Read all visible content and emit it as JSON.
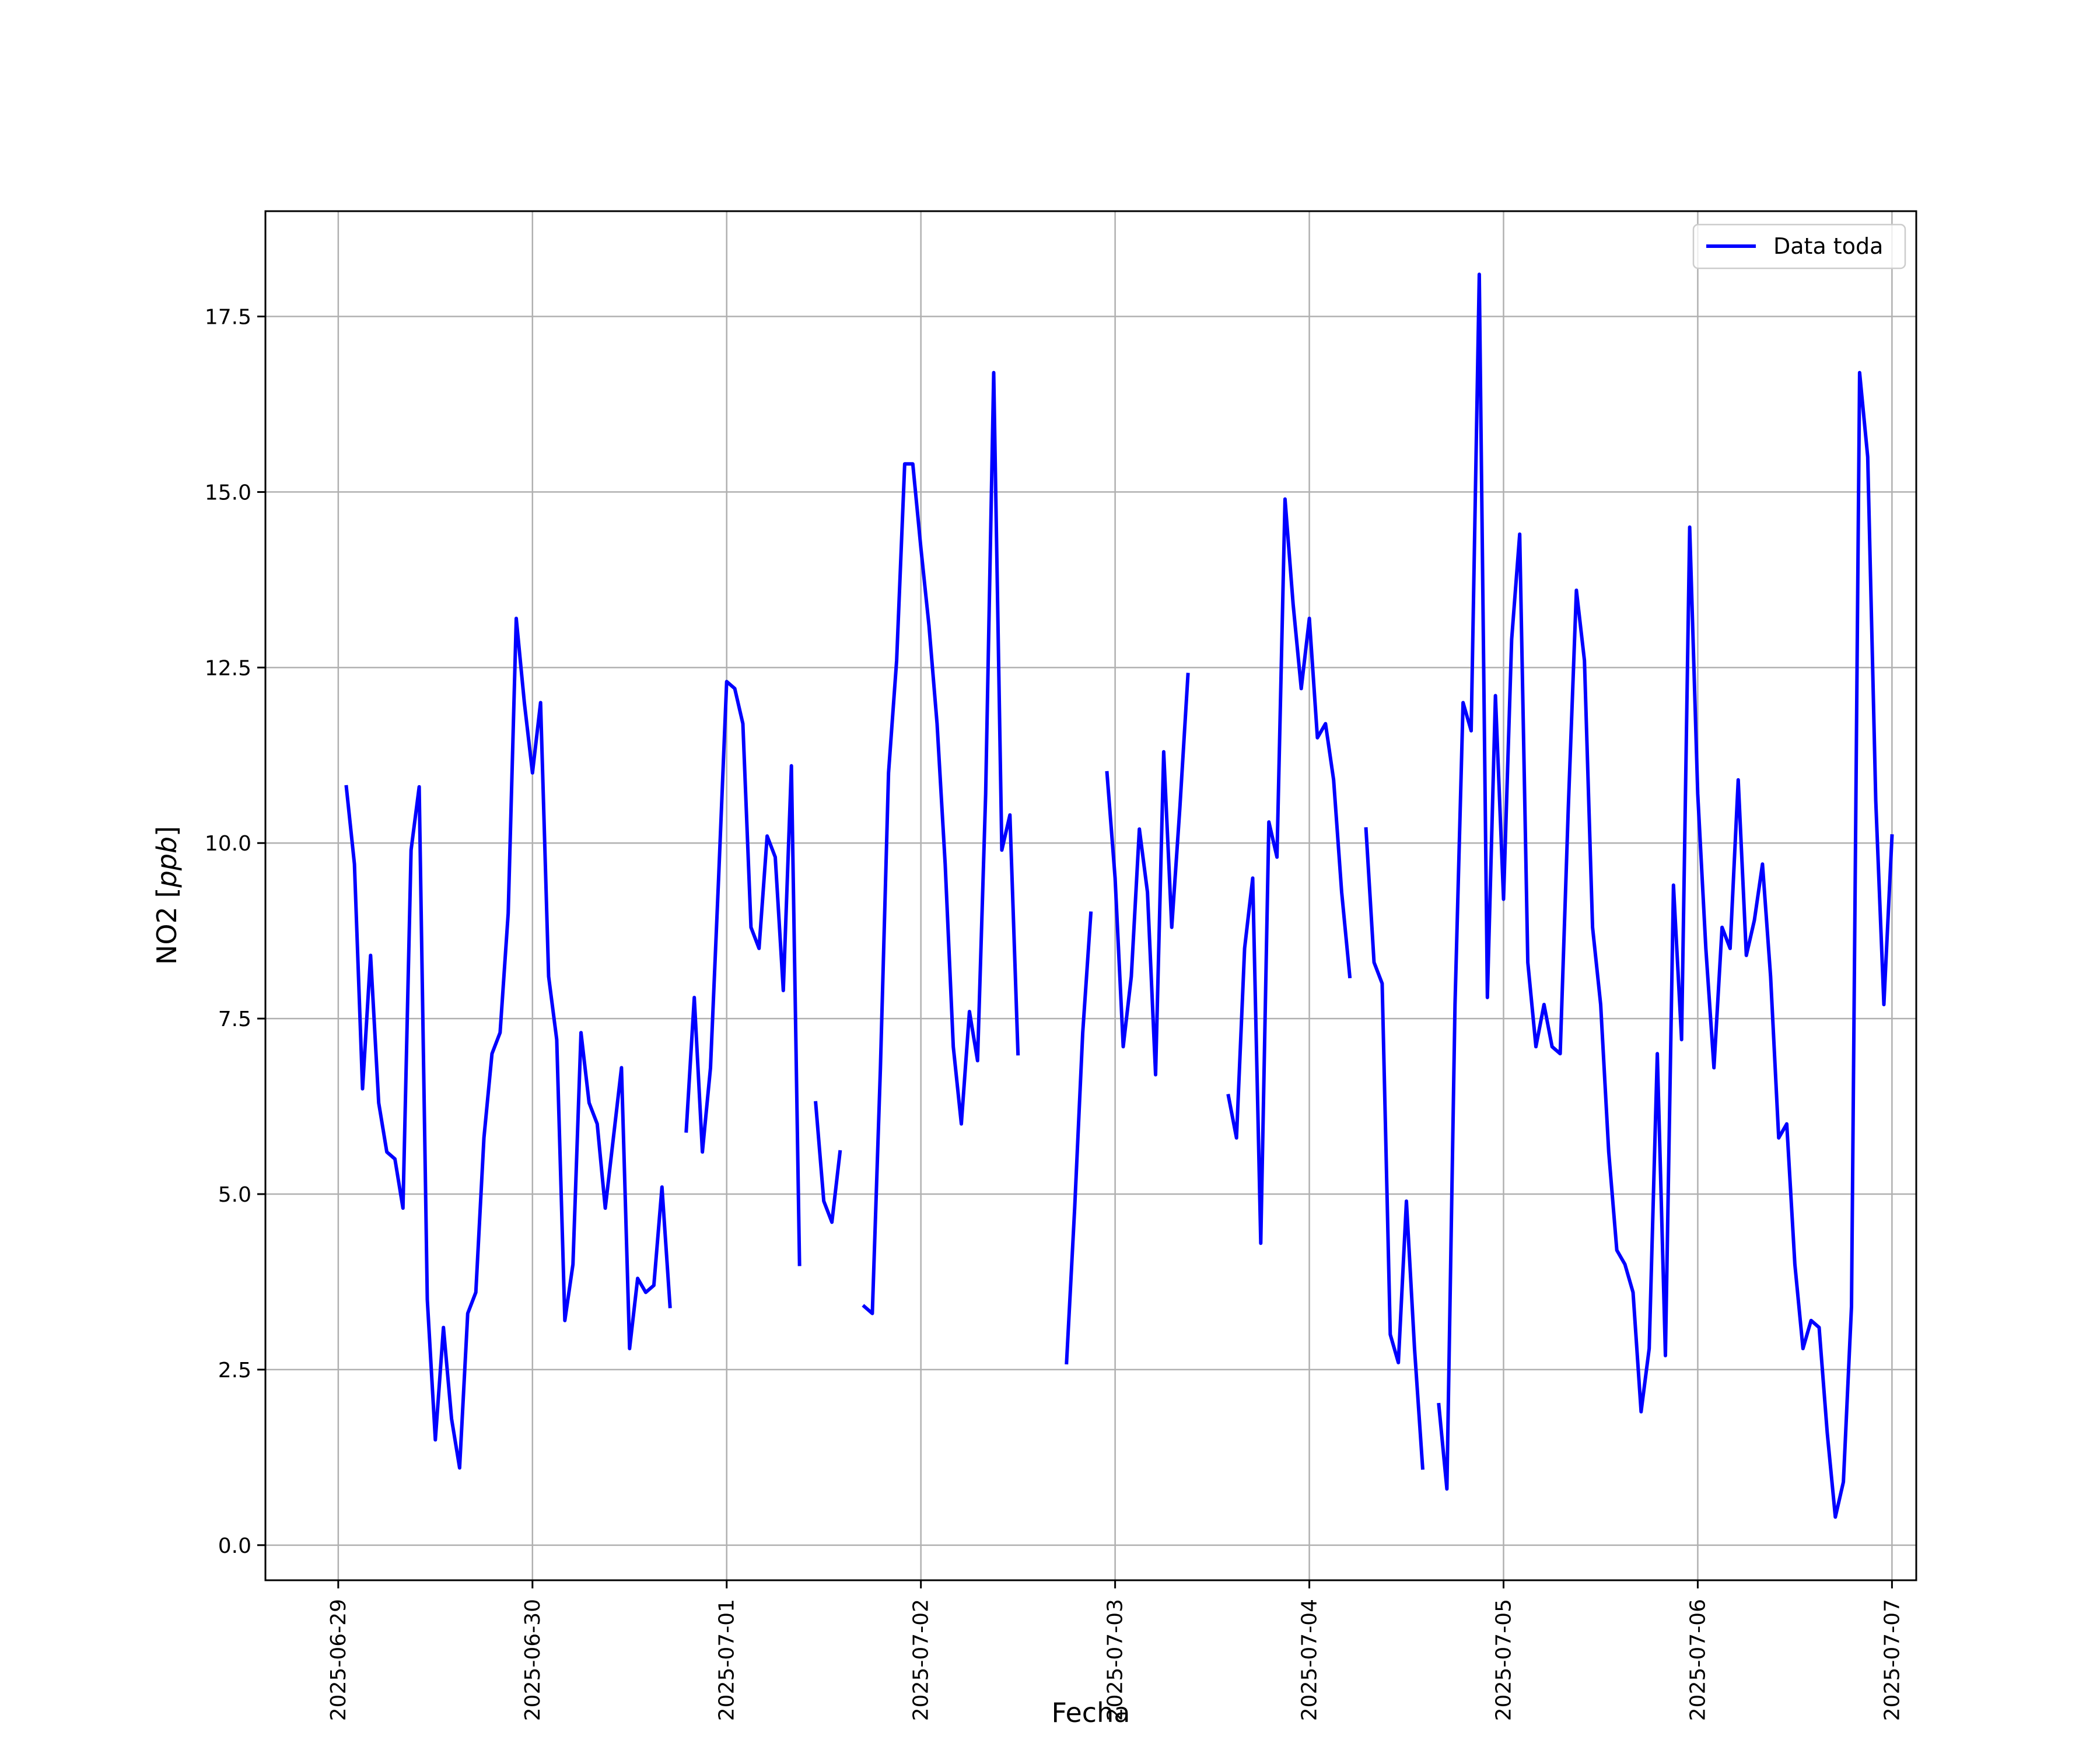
{
  "chart_data": {
    "type": "line",
    "xlabel": "Fecha",
    "ylabel": "NO2 [ppb]",
    "ylabel_parts": {
      "name": "NO2",
      "unit": "ppb"
    },
    "xlim": [
      "2025-06-28 15:00",
      "2025-07-07 03:00"
    ],
    "ylim": [
      -0.5,
      19.0
    ],
    "x_ticks": [
      "2025-06-29",
      "2025-06-30",
      "2025-07-01",
      "2025-07-02",
      "2025-07-03",
      "2025-07-04",
      "2025-07-05",
      "2025-07-06",
      "2025-07-07"
    ],
    "y_ticks": [
      0.0,
      2.5,
      5.0,
      7.5,
      10.0,
      12.5,
      15.0,
      17.5
    ],
    "y_tick_labels": [
      "0.0",
      "2.5",
      "5.0",
      "7.5",
      "10.0",
      "12.5",
      "15.0",
      "17.5"
    ],
    "grid": true,
    "legend_position": "top-right",
    "series": [
      {
        "name": "Data toda",
        "color": "#0000ff",
        "segments": [
          {
            "points": [
              [
                "2025-06-29 01:00",
                10.8
              ],
              [
                "2025-06-29 02:00",
                9.7
              ],
              [
                "2025-06-29 03:00",
                6.5
              ],
              [
                "2025-06-29 04:00",
                8.4
              ],
              [
                "2025-06-29 05:00",
                6.3
              ],
              [
                "2025-06-29 06:00",
                5.6
              ],
              [
                "2025-06-29 07:00",
                5.5
              ],
              [
                "2025-06-29 08:00",
                4.8
              ],
              [
                "2025-06-29 09:00",
                9.9
              ],
              [
                "2025-06-29 10:00",
                10.8
              ],
              [
                "2025-06-29 11:00",
                3.5
              ],
              [
                "2025-06-29 12:00",
                1.5
              ],
              [
                "2025-06-29 13:00",
                3.1
              ],
              [
                "2025-06-29 14:00",
                1.8
              ],
              [
                "2025-06-29 15:00",
                1.1
              ],
              [
                "2025-06-29 16:00",
                3.3
              ],
              [
                "2025-06-29 17:00",
                3.6
              ],
              [
                "2025-06-29 18:00",
                5.8
              ],
              [
                "2025-06-29 19:00",
                7.0
              ],
              [
                "2025-06-29 20:00",
                7.3
              ],
              [
                "2025-06-29 21:00",
                9.0
              ],
              [
                "2025-06-29 22:00",
                13.2
              ],
              [
                "2025-06-29 23:00",
                12.0
              ],
              [
                "2025-06-30 00:00",
                11.0
              ],
              [
                "2025-06-30 01:00",
                12.0
              ],
              [
                "2025-06-30 02:00",
                8.1
              ],
              [
                "2025-06-30 03:00",
                7.2
              ],
              [
                "2025-06-30 04:00",
                3.2
              ],
              [
                "2025-06-30 05:00",
                4.0
              ],
              [
                "2025-06-30 06:00",
                7.3
              ],
              [
                "2025-06-30 07:00",
                6.3
              ],
              [
                "2025-06-30 08:00",
                6.0
              ],
              [
                "2025-06-30 09:00",
                4.8
              ],
              [
                "2025-06-30 10:00",
                5.8
              ],
              [
                "2025-06-30 11:00",
                6.8
              ],
              [
                "2025-06-30 12:00",
                2.8
              ],
              [
                "2025-06-30 13:00",
                3.8
              ],
              [
                "2025-06-30 14:00",
                3.6
              ],
              [
                "2025-06-30 15:00",
                3.7
              ],
              [
                "2025-06-30 16:00",
                5.1
              ],
              [
                "2025-06-30 17:00",
                3.4
              ]
            ]
          },
          {
            "points": [
              [
                "2025-06-30 19:00",
                5.9
              ],
              [
                "2025-06-30 20:00",
                7.8
              ],
              [
                "2025-06-30 21:00",
                5.6
              ],
              [
                "2025-06-30 22:00",
                6.8
              ],
              [
                "2025-06-30 23:00",
                9.5
              ],
              [
                "2025-07-01 00:00",
                12.3
              ],
              [
                "2025-07-01 01:00",
                12.2
              ],
              [
                "2025-07-01 02:00",
                11.7
              ],
              [
                "2025-07-01 03:00",
                8.8
              ],
              [
                "2025-07-01 04:00",
                8.5
              ],
              [
                "2025-07-01 05:00",
                10.1
              ],
              [
                "2025-07-01 06:00",
                9.8
              ],
              [
                "2025-07-01 07:00",
                7.9
              ],
              [
                "2025-07-01 08:00",
                11.1
              ],
              [
                "2025-07-01 09:00",
                4.0
              ]
            ]
          },
          {
            "points": [
              [
                "2025-07-01 11:00",
                6.3
              ],
              [
                "2025-07-01 12:00",
                4.9
              ],
              [
                "2025-07-01 13:00",
                4.6
              ],
              [
                "2025-07-01 14:00",
                5.6
              ]
            ]
          },
          {
            "points": [
              [
                "2025-07-01 17:00",
                3.4
              ],
              [
                "2025-07-01 18:00",
                3.3
              ],
              [
                "2025-07-01 19:00",
                6.8
              ],
              [
                "2025-07-01 20:00",
                11.0
              ],
              [
                "2025-07-01 21:00",
                12.6
              ],
              [
                "2025-07-01 22:00",
                15.4
              ],
              [
                "2025-07-01 23:00",
                15.4
              ],
              [
                "2025-07-02 00:00",
                14.2
              ],
              [
                "2025-07-02 01:00",
                13.1
              ],
              [
                "2025-07-02 02:00",
                11.7
              ],
              [
                "2025-07-02 03:00",
                9.7
              ],
              [
                "2025-07-02 04:00",
                7.1
              ],
              [
                "2025-07-02 05:00",
                6.0
              ],
              [
                "2025-07-02 06:00",
                7.6
              ],
              [
                "2025-07-02 07:00",
                6.9
              ],
              [
                "2025-07-02 08:00",
                10.7
              ],
              [
                "2025-07-02 09:00",
                16.7
              ],
              [
                "2025-07-02 10:00",
                9.9
              ],
              [
                "2025-07-02 11:00",
                10.4
              ],
              [
                "2025-07-02 12:00",
                7.0
              ]
            ]
          },
          {
            "points": [
              [
                "2025-07-02 18:00",
                2.6
              ],
              [
                "2025-07-02 19:00",
                4.8
              ],
              [
                "2025-07-02 20:00",
                7.3
              ],
              [
                "2025-07-02 21:00",
                9.0
              ]
            ]
          },
          {
            "points": [
              [
                "2025-07-02 23:00",
                11.0
              ],
              [
                "2025-07-03 00:00",
                9.5
              ],
              [
                "2025-07-03 01:00",
                7.1
              ],
              [
                "2025-07-03 02:00",
                8.1
              ],
              [
                "2025-07-03 03:00",
                10.2
              ],
              [
                "2025-07-03 04:00",
                9.3
              ],
              [
                "2025-07-03 05:00",
                6.7
              ],
              [
                "2025-07-03 06:00",
                11.3
              ],
              [
                "2025-07-03 07:00",
                8.8
              ],
              [
                "2025-07-03 08:00",
                10.5
              ],
              [
                "2025-07-03 09:00",
                12.4
              ]
            ]
          },
          {
            "points": [
              [
                "2025-07-03 14:00",
                6.4
              ],
              [
                "2025-07-03 15:00",
                5.8
              ],
              [
                "2025-07-03 16:00",
                8.5
              ],
              [
                "2025-07-03 17:00",
                9.5
              ],
              [
                "2025-07-03 18:00",
                4.3
              ],
              [
                "2025-07-03 19:00",
                10.3
              ],
              [
                "2025-07-03 20:00",
                9.8
              ],
              [
                "2025-07-03 21:00",
                14.9
              ],
              [
                "2025-07-03 22:00",
                13.4
              ],
              [
                "2025-07-03 23:00",
                12.2
              ],
              [
                "2025-07-04 00:00",
                13.2
              ],
              [
                "2025-07-04 01:00",
                11.5
              ],
              [
                "2025-07-04 02:00",
                11.7
              ],
              [
                "2025-07-04 03:00",
                10.9
              ],
              [
                "2025-07-04 04:00",
                9.3
              ],
              [
                "2025-07-04 05:00",
                8.1
              ]
            ]
          },
          {
            "points": [
              [
                "2025-07-04 07:00",
                10.2
              ],
              [
                "2025-07-04 08:00",
                8.3
              ],
              [
                "2025-07-04 09:00",
                8.0
              ],
              [
                "2025-07-04 10:00",
                3.0
              ],
              [
                "2025-07-04 11:00",
                2.6
              ],
              [
                "2025-07-04 12:00",
                4.9
              ],
              [
                "2025-07-04 13:00",
                2.8
              ],
              [
                "2025-07-04 14:00",
                1.1
              ]
            ]
          },
          {
            "points": [
              [
                "2025-07-04 16:00",
                2.0
              ],
              [
                "2025-07-04 17:00",
                0.8
              ],
              [
                "2025-07-04 18:00",
                7.7
              ],
              [
                "2025-07-04 19:00",
                12.0
              ],
              [
                "2025-07-04 20:00",
                11.6
              ],
              [
                "2025-07-04 21:00",
                18.1
              ],
              [
                "2025-07-04 22:00",
                7.8
              ],
              [
                "2025-07-04 23:00",
                12.1
              ],
              [
                "2025-07-05 00:00",
                9.2
              ],
              [
                "2025-07-05 01:00",
                12.9
              ],
              [
                "2025-07-05 02:00",
                14.4
              ],
              [
                "2025-07-05 03:00",
                8.3
              ],
              [
                "2025-07-05 04:00",
                7.1
              ],
              [
                "2025-07-05 05:00",
                7.7
              ],
              [
                "2025-07-05 06:00",
                7.1
              ],
              [
                "2025-07-05 07:00",
                7.0
              ],
              [
                "2025-07-05 08:00",
                10.5
              ],
              [
                "2025-07-05 09:00",
                13.6
              ],
              [
                "2025-07-05 10:00",
                12.6
              ],
              [
                "2025-07-05 11:00",
                8.8
              ],
              [
                "2025-07-05 12:00",
                7.7
              ],
              [
                "2025-07-05 13:00",
                5.6
              ],
              [
                "2025-07-05 14:00",
                4.2
              ],
              [
                "2025-07-05 15:00",
                4.0
              ],
              [
                "2025-07-05 16:00",
                3.6
              ],
              [
                "2025-07-05 17:00",
                1.9
              ],
              [
                "2025-07-05 18:00",
                2.8
              ],
              [
                "2025-07-05 19:00",
                7.0
              ],
              [
                "2025-07-05 20:00",
                2.7
              ],
              [
                "2025-07-05 21:00",
                9.4
              ],
              [
                "2025-07-05 22:00",
                7.2
              ],
              [
                "2025-07-05 23:00",
                14.5
              ],
              [
                "2025-07-06 00:00",
                10.7
              ],
              [
                "2025-07-06 01:00",
                8.5
              ],
              [
                "2025-07-06 02:00",
                6.8
              ],
              [
                "2025-07-06 03:00",
                8.8
              ],
              [
                "2025-07-06 04:00",
                8.5
              ],
              [
                "2025-07-06 05:00",
                10.9
              ],
              [
                "2025-07-06 06:00",
                8.4
              ],
              [
                "2025-07-06 07:00",
                8.9
              ],
              [
                "2025-07-06 08:00",
                9.7
              ],
              [
                "2025-07-06 09:00",
                8.1
              ],
              [
                "2025-07-06 10:00",
                5.8
              ],
              [
                "2025-07-06 11:00",
                6.0
              ],
              [
                "2025-07-06 12:00",
                4.0
              ],
              [
                "2025-07-06 13:00",
                2.8
              ],
              [
                "2025-07-06 14:00",
                3.2
              ],
              [
                "2025-07-06 15:00",
                3.1
              ],
              [
                "2025-07-06 16:00",
                1.6
              ],
              [
                "2025-07-06 17:00",
                0.4
              ],
              [
                "2025-07-06 18:00",
                0.9
              ],
              [
                "2025-07-06 19:00",
                3.4
              ],
              [
                "2025-07-06 20:00",
                16.7
              ],
              [
                "2025-07-06 21:00",
                15.5
              ],
              [
                "2025-07-06 22:00",
                10.6
              ],
              [
                "2025-07-06 23:00",
                7.7
              ],
              [
                "2025-07-07 00:00",
                10.1
              ]
            ]
          }
        ]
      }
    ]
  }
}
